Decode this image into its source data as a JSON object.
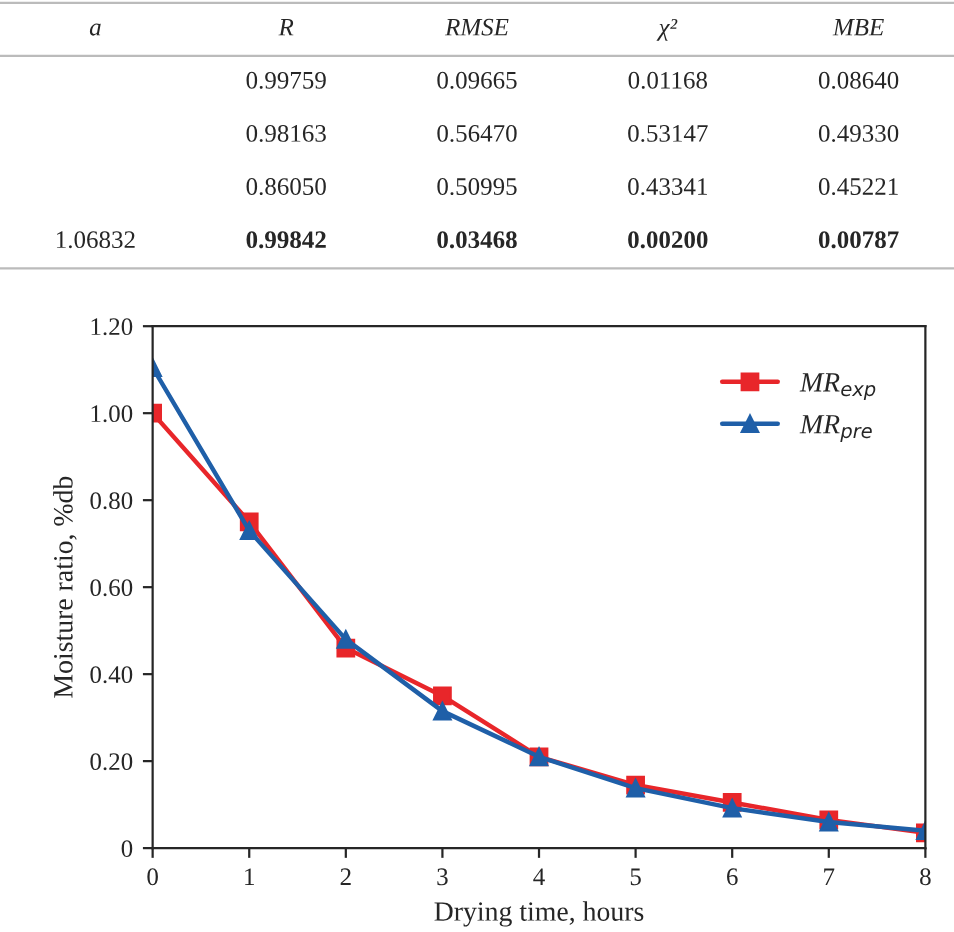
{
  "chart_data": [
    {
      "type": "other",
      "categories": [
        "a",
        "R",
        "RMSE",
        "χ²",
        "MBE"
      ],
      "cells": [
        [
          null,
          "0.99759",
          "0.09665",
          "0.01168",
          "0.08640"
        ],
        [
          null,
          "0.98163",
          "0.56470",
          "0.53147",
          "0.49330"
        ],
        [
          null,
          "0.86050",
          "0.50995",
          "0.43341",
          "0.45221"
        ],
        [
          "1.06832",
          "0.99842",
          "0.03468",
          "0.00200",
          "0.00787"
        ]
      ]
    },
    {
      "type": "line",
      "xlabel": "Drying time, hours",
      "ylabel": "Moisture ratio, %db",
      "x": [
        0,
        1,
        2,
        3,
        4,
        5,
        6,
        7,
        8
      ],
      "xlim": [
        0,
        8
      ],
      "xticks": [
        0,
        1,
        2,
        3,
        4,
        5,
        6,
        7,
        8
      ],
      "ylim": [
        0,
        1.2
      ],
      "yticks": [
        0,
        {
          "value": 0.2,
          "label": "0.20"
        },
        {
          "value": 0.4,
          "label": "0.40"
        },
        {
          "value": 0.6,
          "label": "0.60"
        },
        {
          "value": 0.8,
          "label": "0.80"
        },
        {
          "value": 1.0,
          "label": "1.00"
        },
        {
          "value": 1.2,
          "label": "1.20"
        }
      ],
      "legend": "top right",
      "grid": false,
      "line_style": "solid",
      "series": [
        {
          "name": "MR$_{exp}$",
          "color": "#e8262a",
          "marker": "square",
          "values": [
            1.0,
            0.75,
            0.46,
            0.35,
            0.21,
            0.145,
            0.105,
            0.065,
            0.035
          ]
        },
        {
          "name": "MR$_{pre}$",
          "color": "#1f5fa8",
          "marker": "triangle",
          "values": [
            1.105,
            0.73,
            0.48,
            0.315,
            0.21,
            0.138,
            0.092,
            0.06,
            0.04
          ]
        }
      ]
    }
  ]
}
